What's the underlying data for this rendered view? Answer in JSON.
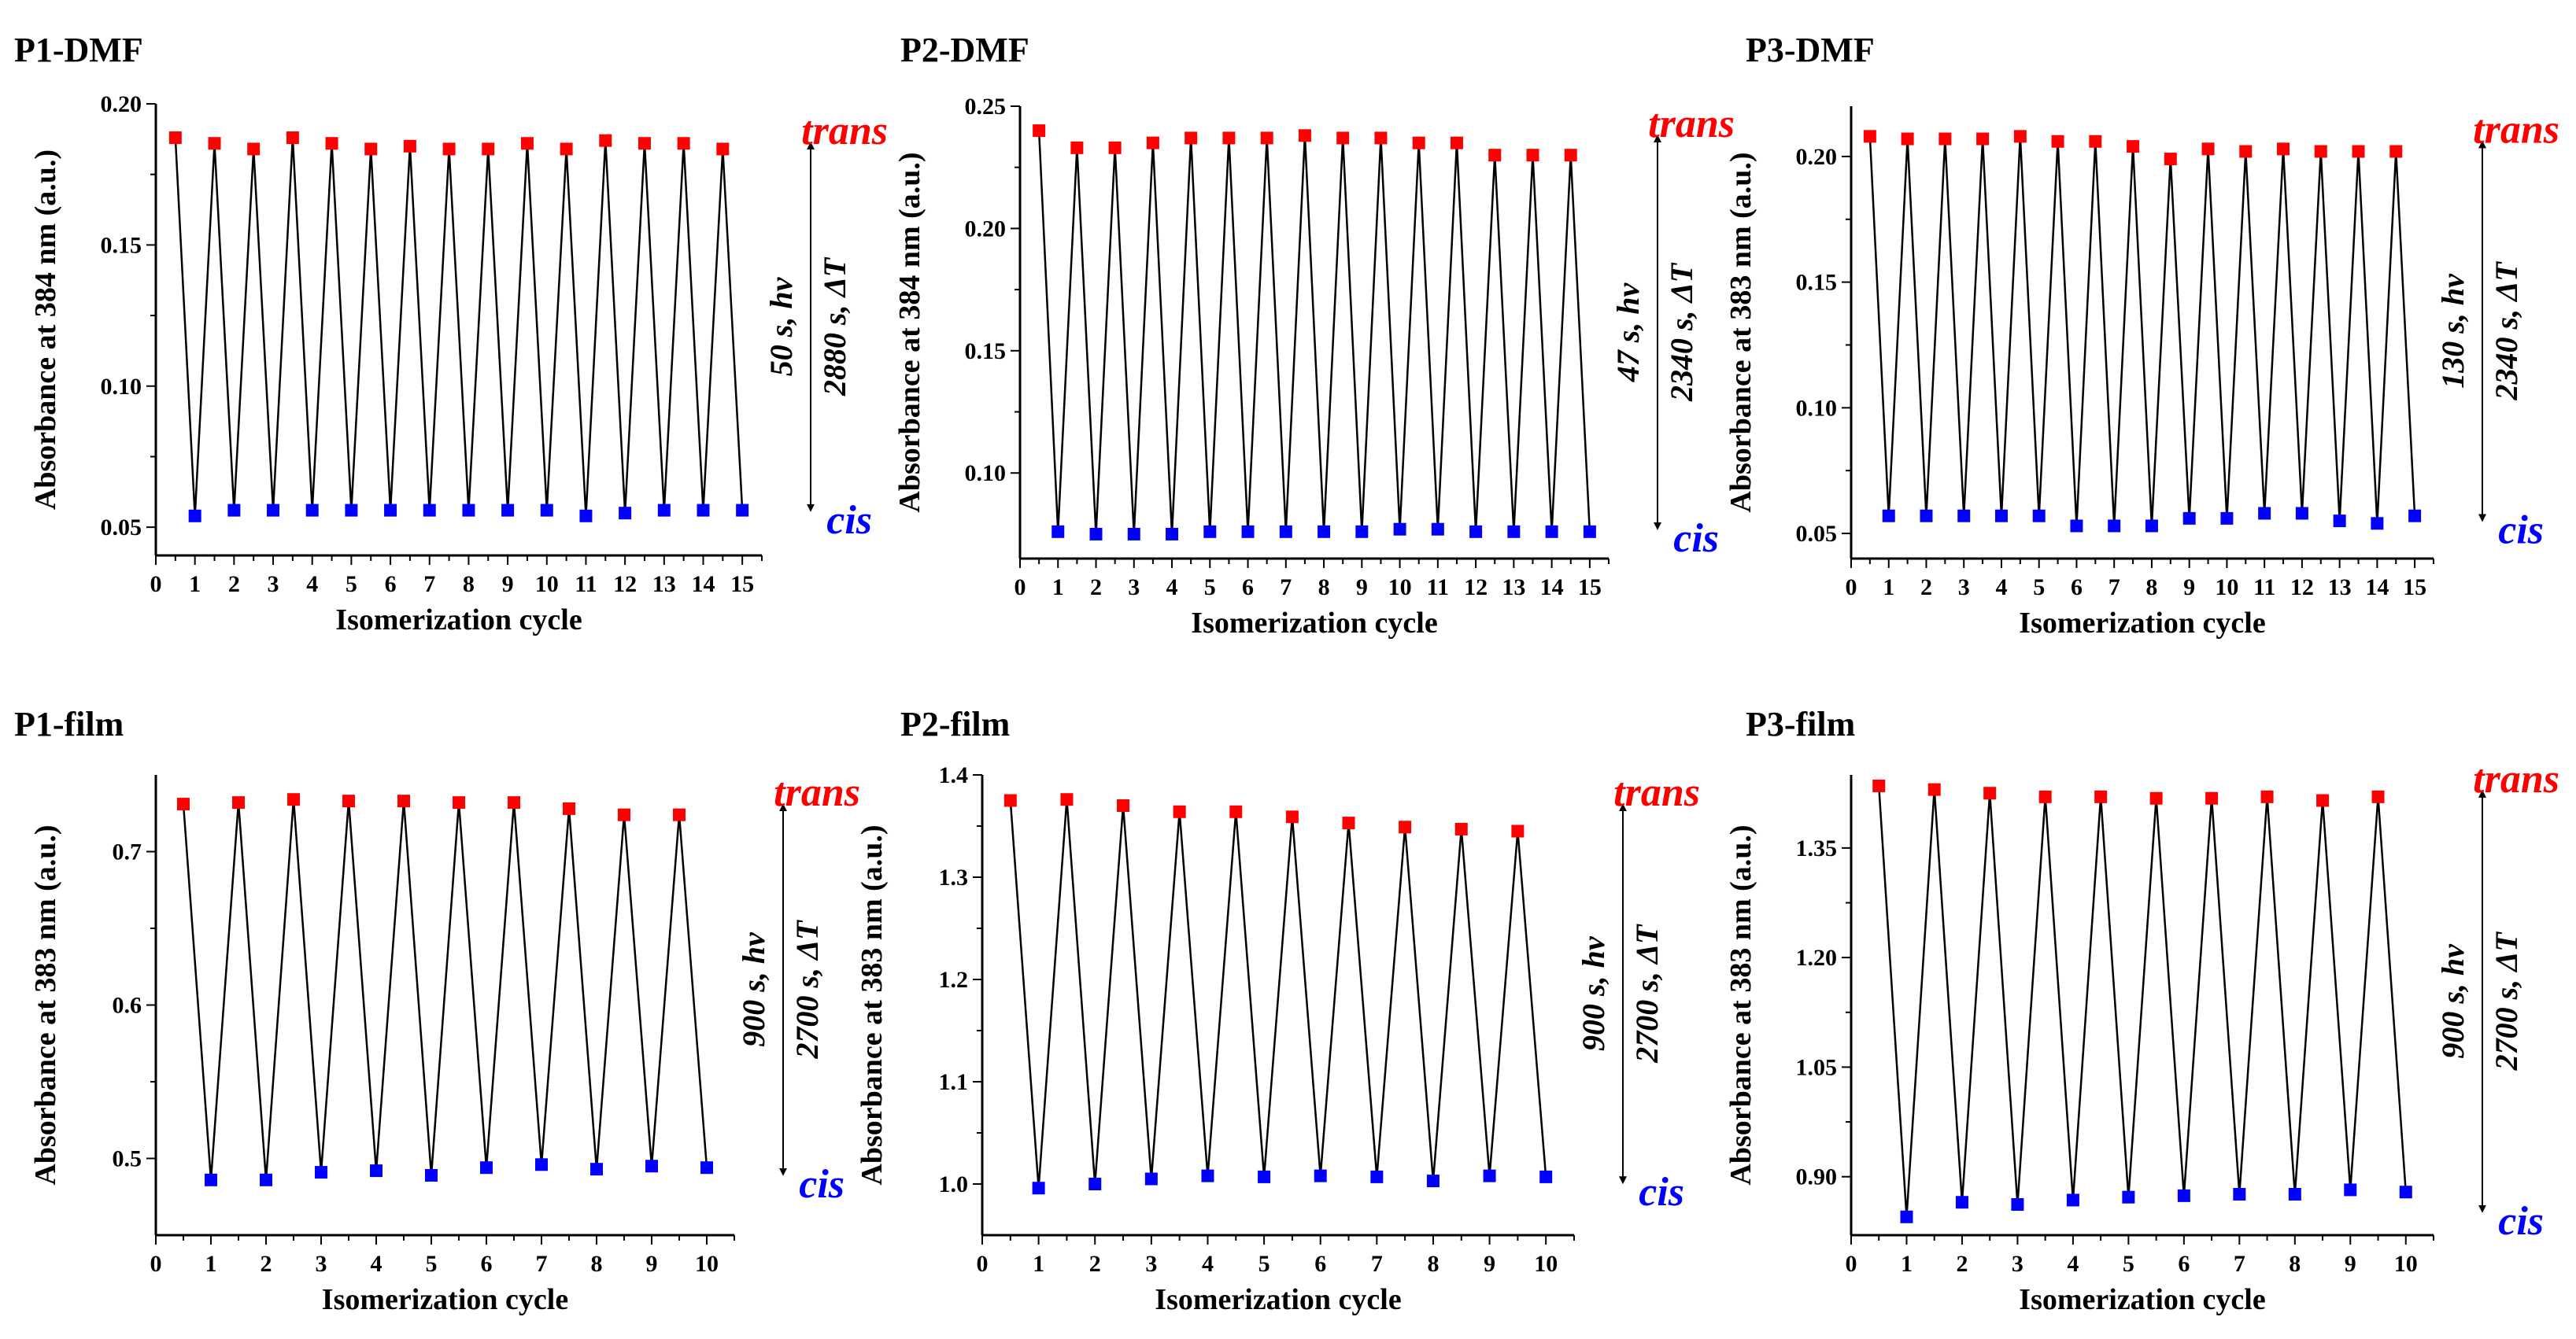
{
  "chart_data": [
    {
      "type": "line",
      "title": "P1-DMF",
      "xlabel": "Isomerization cycle",
      "ylabel": "Absorbance at 384 nm (a.u.)",
      "xlim": [
        0,
        15.5
      ],
      "ylim": [
        0.04,
        0.2
      ],
      "xticks": [
        0,
        1,
        2,
        3,
        4,
        5,
        6,
        7,
        8,
        9,
        10,
        11,
        12,
        13,
        14,
        15
      ],
      "yticks": [
        0.05,
        0.1,
        0.15,
        0.2
      ],
      "ytick_labels": [
        "0.05",
        "0.10",
        "0.15",
        "0.20"
      ],
      "trans_x": [
        0.5,
        1.5,
        2.5,
        3.5,
        4.5,
        5.5,
        6.5,
        7.5,
        8.5,
        9.5,
        10.5,
        11.5,
        12.5,
        13.5,
        14.5
      ],
      "trans": [
        0.188,
        0.186,
        0.184,
        0.188,
        0.186,
        0.184,
        0.185,
        0.184,
        0.184,
        0.186,
        0.184,
        0.187,
        0.186,
        0.186,
        0.184
      ],
      "cis_x": [
        1,
        2,
        3,
        4,
        5,
        6,
        7,
        8,
        9,
        10,
        11,
        12,
        13,
        14,
        15
      ],
      "cis": [
        0.054,
        0.056,
        0.056,
        0.056,
        0.056,
        0.056,
        0.056,
        0.056,
        0.056,
        0.056,
        0.054,
        0.055,
        0.056,
        0.056,
        0.056
      ],
      "trans_label": "trans",
      "cis_label": "cis",
      "annotation_light": "50 s, hν",
      "annotation_thermal": "2880 s, ΔT"
    },
    {
      "type": "line",
      "title": "P2-DMF",
      "xlabel": "Isomerization cycle",
      "ylabel": "Absorbance at 384 nm (a.u.)",
      "xlim": [
        0,
        15.5
      ],
      "ylim": [
        0.065,
        0.25
      ],
      "xticks": [
        0,
        1,
        2,
        3,
        4,
        5,
        6,
        7,
        8,
        9,
        10,
        11,
        12,
        13,
        14,
        15
      ],
      "yticks": [
        0.1,
        0.15,
        0.2,
        0.25
      ],
      "ytick_labels": [
        "0.10",
        "0.15",
        "0.20",
        "0.25"
      ],
      "trans_x": [
        0.5,
        1.5,
        2.5,
        3.5,
        4.5,
        5.5,
        6.5,
        7.5,
        8.5,
        9.5,
        10.5,
        11.5,
        12.5,
        13.5,
        14.5
      ],
      "trans": [
        0.24,
        0.233,
        0.233,
        0.235,
        0.237,
        0.237,
        0.237,
        0.238,
        0.237,
        0.237,
        0.235,
        0.235,
        0.23,
        0.23,
        0.23
      ],
      "cis_x": [
        1,
        2,
        3,
        4,
        5,
        6,
        7,
        8,
        9,
        10,
        11,
        12,
        13,
        14,
        15
      ],
      "cis": [
        0.076,
        0.075,
        0.075,
        0.075,
        0.076,
        0.076,
        0.076,
        0.076,
        0.076,
        0.077,
        0.077,
        0.076,
        0.076,
        0.076,
        0.076
      ],
      "trans_label": "trans",
      "cis_label": "cis",
      "annotation_light": "47 s, hν",
      "annotation_thermal": "2340 s, ΔT"
    },
    {
      "type": "line",
      "title": "P3-DMF",
      "xlabel": "Isomerization cycle",
      "ylabel": "Absorbance at 383 nm (a.u.)",
      "xlim": [
        0,
        15.5
      ],
      "ylim": [
        0.04,
        0.22
      ],
      "xticks": [
        0,
        1,
        2,
        3,
        4,
        5,
        6,
        7,
        8,
        9,
        10,
        11,
        12,
        13,
        14,
        15
      ],
      "yticks": [
        0.05,
        0.1,
        0.15,
        0.2
      ],
      "ytick_labels": [
        "0.05",
        "0.10",
        "0.15",
        "0.20"
      ],
      "trans_x": [
        0.5,
        1.5,
        2.5,
        3.5,
        4.5,
        5.5,
        6.5,
        7.5,
        8.5,
        9.5,
        10.5,
        11.5,
        12.5,
        13.5,
        14.5
      ],
      "trans": [
        0.208,
        0.207,
        0.207,
        0.207,
        0.208,
        0.206,
        0.206,
        0.204,
        0.199,
        0.203,
        0.202,
        0.203,
        0.202,
        0.202,
        0.202
      ],
      "cis_x": [
        1,
        2,
        3,
        4,
        5,
        6,
        7,
        8,
        9,
        10,
        11,
        12,
        13,
        14,
        15
      ],
      "cis": [
        0.057,
        0.057,
        0.057,
        0.057,
        0.057,
        0.053,
        0.053,
        0.053,
        0.056,
        0.056,
        0.058,
        0.058,
        0.055,
        0.054,
        0.057
      ],
      "trans_label": "trans",
      "cis_label": "cis",
      "annotation_light": "130 s, hν",
      "annotation_thermal": "2340 s, ΔT"
    },
    {
      "type": "line",
      "title": "P1-film",
      "xlabel": "Isomerization cycle",
      "ylabel": "Absorbance at 383 nm (a.u.)",
      "xlim": [
        0,
        10.5
      ],
      "ylim": [
        0.45,
        0.75
      ],
      "xticks": [
        0,
        1,
        2,
        3,
        4,
        5,
        6,
        7,
        8,
        9,
        10
      ],
      "yticks": [
        0.5,
        0.6,
        0.7
      ],
      "ytick_labels": [
        "0.5",
        "0.6",
        "0.7"
      ],
      "trans_x": [
        0.5,
        1.5,
        2.5,
        3.5,
        4.5,
        5.5,
        6.5,
        7.5,
        8.5,
        9.5
      ],
      "trans": [
        0.731,
        0.732,
        0.734,
        0.733,
        0.733,
        0.732,
        0.732,
        0.728,
        0.724,
        0.724
      ],
      "cis_x": [
        1,
        2,
        3,
        4,
        5,
        6,
        7,
        8,
        9,
        10
      ],
      "cis": [
        0.486,
        0.486,
        0.491,
        0.492,
        0.489,
        0.494,
        0.496,
        0.493,
        0.495,
        0.494
      ],
      "trans_label": "trans",
      "cis_label": "cis",
      "annotation_light": "900 s, hν",
      "annotation_thermal": "2700 s, ΔT"
    },
    {
      "type": "line",
      "title": "P2-film",
      "xlabel": "Isomerization cycle",
      "ylabel": "Absorbance at 383 nm (a.u.)",
      "xlim": [
        0,
        10.5
      ],
      "ylim": [
        0.95,
        1.4
      ],
      "xticks": [
        0,
        1,
        2,
        3,
        4,
        5,
        6,
        7,
        8,
        9,
        10
      ],
      "yticks": [
        1.0,
        1.1,
        1.2,
        1.3,
        1.4
      ],
      "ytick_labels": [
        "1.0",
        "1.1",
        "1.2",
        "1.3",
        "1.4"
      ],
      "trans_x": [
        0.5,
        1.5,
        2.5,
        3.5,
        4.5,
        5.5,
        6.5,
        7.5,
        8.5,
        9.5
      ],
      "trans": [
        1.375,
        1.376,
        1.37,
        1.364,
        1.364,
        1.359,
        1.353,
        1.349,
        1.347,
        1.345
      ],
      "cis_x": [
        1,
        2,
        3,
        4,
        5,
        6,
        7,
        8,
        9,
        10
      ],
      "cis": [
        0.996,
        1.0,
        1.005,
        1.008,
        1.007,
        1.008,
        1.007,
        1.003,
        1.008,
        1.007
      ],
      "trans_label": "trans",
      "cis_label": "cis",
      "annotation_light": "900 s, hν",
      "annotation_thermal": "2700 s, ΔT"
    },
    {
      "type": "line",
      "title": "P3-film",
      "xlabel": "Isomerization cycle",
      "ylabel": "Absorbance at 383 nm (a.u.)",
      "xlim": [
        0,
        10.5
      ],
      "ylim": [
        0.82,
        1.45
      ],
      "xticks": [
        0,
        1,
        2,
        3,
        4,
        5,
        6,
        7,
        8,
        9,
        10
      ],
      "yticks": [
        0.9,
        1.05,
        1.2,
        1.35
      ],
      "ytick_labels": [
        "0.90",
        "1.05",
        "1.20",
        "1.35"
      ],
      "trans_x": [
        0.5,
        1.5,
        2.5,
        3.5,
        4.5,
        5.5,
        6.5,
        7.5,
        8.5,
        9.5
      ],
      "trans": [
        1.435,
        1.43,
        1.425,
        1.42,
        1.42,
        1.418,
        1.418,
        1.42,
        1.415,
        1.42
      ],
      "cis_x": [
        1,
        2,
        3,
        4,
        5,
        6,
        7,
        8,
        9,
        10
      ],
      "cis": [
        0.845,
        0.865,
        0.862,
        0.868,
        0.872,
        0.874,
        0.876,
        0.876,
        0.882,
        0.879
      ],
      "trans_label": "trans",
      "cis_label": "cis",
      "annotation_light": "900 s, hν",
      "annotation_thermal": "2700 s, ΔT"
    }
  ]
}
